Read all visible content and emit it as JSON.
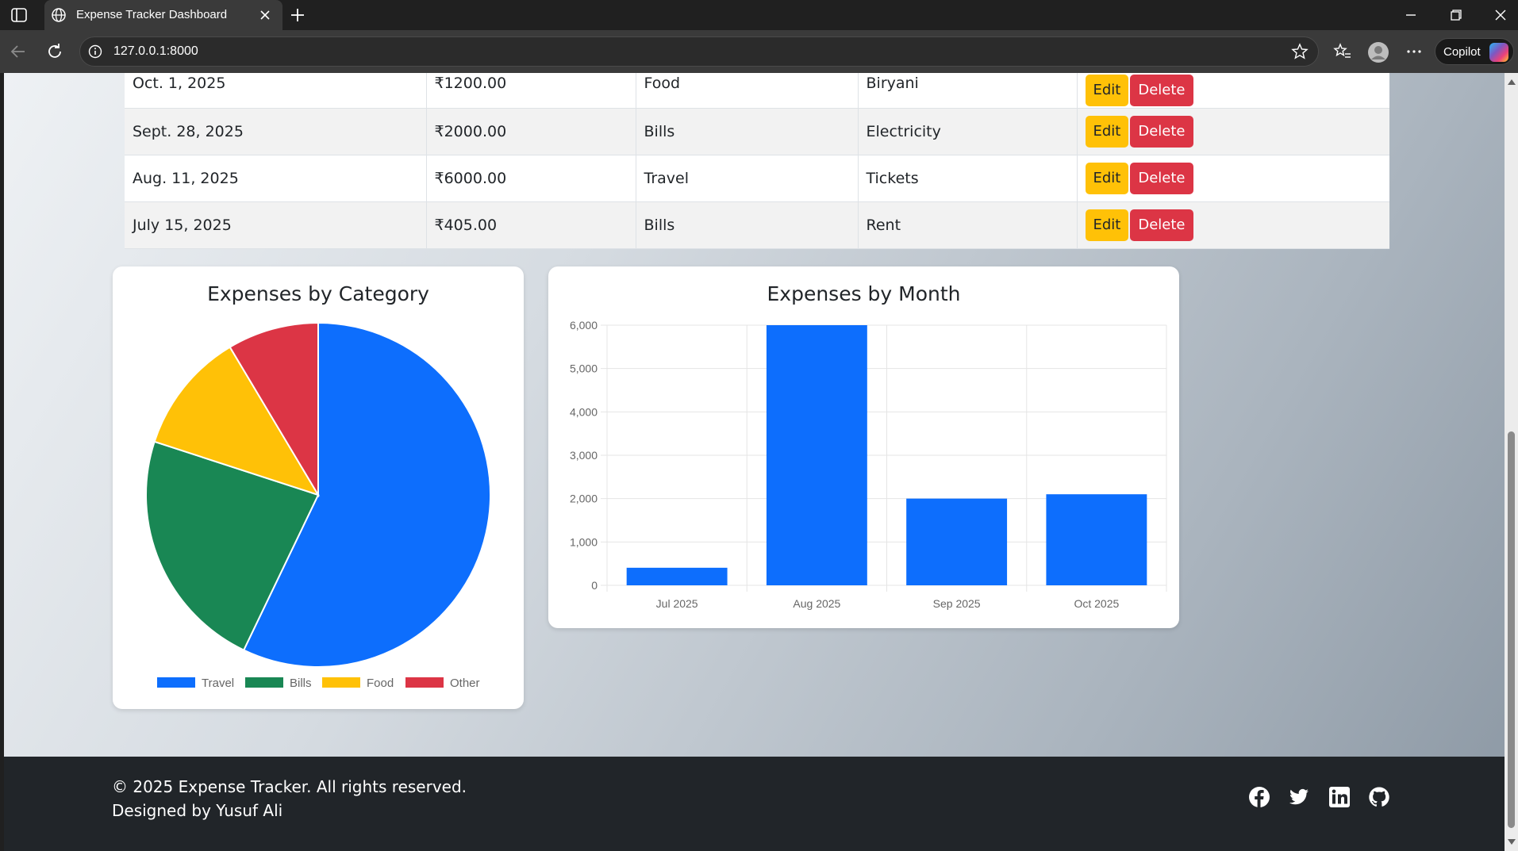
{
  "browser": {
    "tab_title": "Expense Tracker Dashboard",
    "url": "127.0.0.1:8000",
    "copilot_label": "Copilot"
  },
  "expenses": {
    "rows": [
      {
        "date": "Oct. 1, 2025",
        "amount": "₹1200.00",
        "category": "Food",
        "description": "Biryani",
        "edit_label": "Edit",
        "delete_label": "Delete"
      },
      {
        "date": "Sept. 28, 2025",
        "amount": "₹2000.00",
        "category": "Bills",
        "description": "Electricity",
        "edit_label": "Edit",
        "delete_label": "Delete"
      },
      {
        "date": "Aug. 11, 2025",
        "amount": "₹6000.00",
        "category": "Travel",
        "description": "Tickets",
        "edit_label": "Edit",
        "delete_label": "Delete"
      },
      {
        "date": "July 15, 2025",
        "amount": "₹405.00",
        "category": "Bills",
        "description": "Rent",
        "edit_label": "Edit",
        "delete_label": "Delete"
      }
    ]
  },
  "colors": {
    "travel": "#0d6efd",
    "bills": "#198754",
    "food": "#ffc107",
    "other": "#dc3545",
    "edit": "#ffc107",
    "delete": "#dc3545",
    "footer_bg": "#212529"
  },
  "chart_data": [
    {
      "type": "pie",
      "title": "Expenses by Category",
      "legend_position": "bottom",
      "categories": [
        "Travel",
        "Bills",
        "Food",
        "Other"
      ],
      "values": [
        6000,
        2405,
        1200,
        900
      ],
      "colors": [
        "#0d6efd",
        "#198754",
        "#ffc107",
        "#dc3545"
      ]
    },
    {
      "type": "bar",
      "title": "Expenses by Month",
      "categories": [
        "Jul 2025",
        "Aug 2025",
        "Sep 2025",
        "Oct 2025"
      ],
      "values": [
        405,
        6000,
        2000,
        2100
      ],
      "ylim": [
        0,
        6000
      ],
      "yticks": [
        "0",
        "1,000",
        "2,000",
        "3,000",
        "4,000",
        "5,000",
        "6,000"
      ],
      "grid": true,
      "color": "#0d6efd"
    }
  ],
  "footer": {
    "copyright": "© 2025 Expense Tracker. All rights reserved.",
    "designed_by": "Designed by Yusuf Ali",
    "social_icons": [
      "facebook-icon",
      "twitter-icon",
      "linkedin-icon",
      "github-icon"
    ]
  }
}
